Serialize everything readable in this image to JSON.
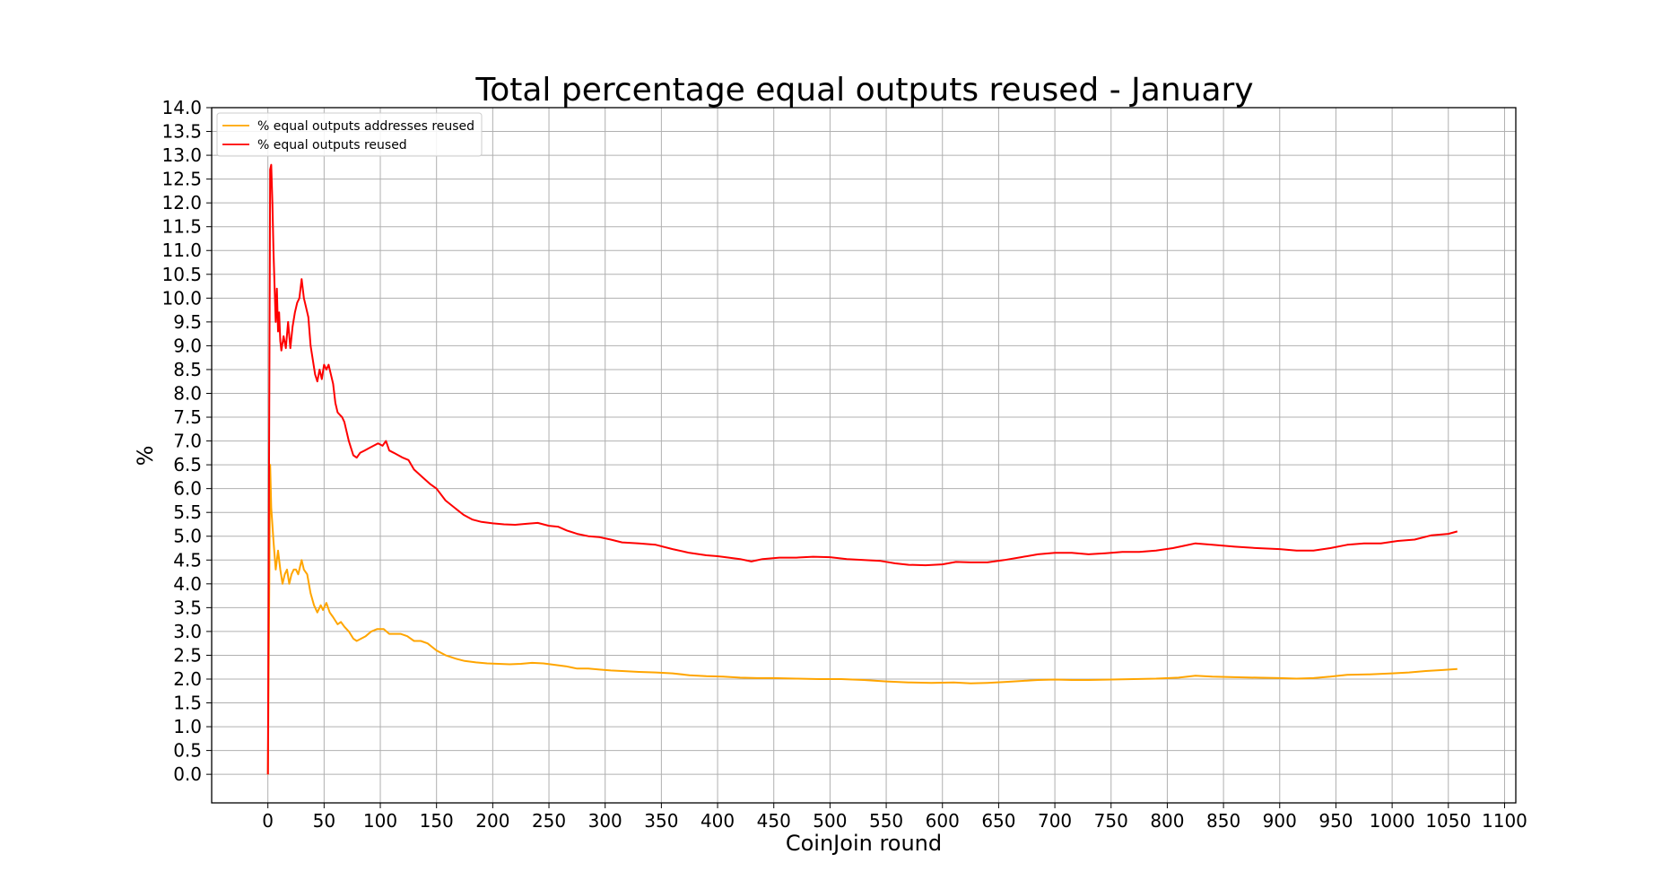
{
  "chart_data": {
    "type": "line",
    "title": "Total percentage equal outputs reused - January",
    "xlabel": "CoinJoin round",
    "ylabel": "%",
    "xlim": [
      -50,
      1110
    ],
    "ylim": [
      -0.6,
      14.0
    ],
    "x_ticks": [
      0,
      50,
      100,
      150,
      200,
      250,
      300,
      350,
      400,
      450,
      500,
      550,
      600,
      650,
      700,
      750,
      800,
      850,
      900,
      950,
      1000,
      1050,
      1100
    ],
    "y_ticks": [
      0.0,
      0.5,
      1.0,
      1.5,
      2.0,
      2.5,
      3.0,
      3.5,
      4.0,
      4.5,
      5.0,
      5.5,
      6.0,
      6.5,
      7.0,
      7.5,
      8.0,
      8.5,
      9.0,
      9.5,
      10.0,
      10.5,
      11.0,
      11.5,
      12.0,
      12.5,
      13.0,
      13.5,
      14.0
    ],
    "grid": true,
    "legend_position": "top-left",
    "series": [
      {
        "name": "% equal outputs addresses reused",
        "color": "#FFA500",
        "points": [
          [
            0,
            0.0
          ],
          [
            2,
            6.5
          ],
          [
            3,
            5.6
          ],
          [
            5,
            4.9
          ],
          [
            7,
            4.3
          ],
          [
            9,
            4.7
          ],
          [
            11,
            4.3
          ],
          [
            13,
            4.0
          ],
          [
            15,
            4.2
          ],
          [
            17,
            4.3
          ],
          [
            19,
            4.0
          ],
          [
            21,
            4.2
          ],
          [
            23,
            4.3
          ],
          [
            25,
            4.3
          ],
          [
            27,
            4.2
          ],
          [
            30,
            4.5
          ],
          [
            32,
            4.3
          ],
          [
            35,
            4.2
          ],
          [
            38,
            3.8
          ],
          [
            41,
            3.55
          ],
          [
            44,
            3.4
          ],
          [
            47,
            3.55
          ],
          [
            49,
            3.45
          ],
          [
            52,
            3.6
          ],
          [
            55,
            3.4
          ],
          [
            58,
            3.3
          ],
          [
            62,
            3.15
          ],
          [
            65,
            3.2
          ],
          [
            68,
            3.1
          ],
          [
            72,
            3.0
          ],
          [
            76,
            2.85
          ],
          [
            79,
            2.8
          ],
          [
            83,
            2.85
          ],
          [
            87,
            2.9
          ],
          [
            92,
            3.0
          ],
          [
            97,
            3.05
          ],
          [
            103,
            3.05
          ],
          [
            108,
            2.95
          ],
          [
            113,
            2.95
          ],
          [
            118,
            2.95
          ],
          [
            124,
            2.9
          ],
          [
            130,
            2.8
          ],
          [
            136,
            2.8
          ],
          [
            142,
            2.75
          ],
          [
            150,
            2.6
          ],
          [
            158,
            2.5
          ],
          [
            167,
            2.43
          ],
          [
            175,
            2.38
          ],
          [
            185,
            2.35
          ],
          [
            195,
            2.33
          ],
          [
            205,
            2.32
          ],
          [
            215,
            2.31
          ],
          [
            225,
            2.32
          ],
          [
            235,
            2.34
          ],
          [
            245,
            2.33
          ],
          [
            255,
            2.3
          ],
          [
            265,
            2.27
          ],
          [
            275,
            2.22
          ],
          [
            285,
            2.22
          ],
          [
            295,
            2.2
          ],
          [
            305,
            2.18
          ],
          [
            315,
            2.17
          ],
          [
            330,
            2.15
          ],
          [
            345,
            2.14
          ],
          [
            360,
            2.12
          ],
          [
            375,
            2.08
          ],
          [
            390,
            2.06
          ],
          [
            405,
            2.05
          ],
          [
            420,
            2.03
          ],
          [
            435,
            2.02
          ],
          [
            450,
            2.02
          ],
          [
            470,
            2.01
          ],
          [
            490,
            2.0
          ],
          [
            510,
            2.0
          ],
          [
            530,
            1.98
          ],
          [
            550,
            1.95
          ],
          [
            570,
            1.93
          ],
          [
            590,
            1.92
          ],
          [
            610,
            1.93
          ],
          [
            625,
            1.91
          ],
          [
            640,
            1.92
          ],
          [
            655,
            1.94
          ],
          [
            670,
            1.96
          ],
          [
            685,
            1.98
          ],
          [
            700,
            1.99
          ],
          [
            715,
            1.98
          ],
          [
            730,
            1.98
          ],
          [
            750,
            1.99
          ],
          [
            770,
            2.0
          ],
          [
            790,
            2.01
          ],
          [
            810,
            2.03
          ],
          [
            825,
            2.07
          ],
          [
            840,
            2.05
          ],
          [
            860,
            2.04
          ],
          [
            880,
            2.03
          ],
          [
            900,
            2.02
          ],
          [
            915,
            2.01
          ],
          [
            930,
            2.02
          ],
          [
            945,
            2.05
          ],
          [
            960,
            2.09
          ],
          [
            980,
            2.1
          ],
          [
            1000,
            2.12
          ],
          [
            1015,
            2.14
          ],
          [
            1030,
            2.17
          ],
          [
            1045,
            2.19
          ],
          [
            1058,
            2.21
          ]
        ]
      },
      {
        "name": "% equal outputs reused",
        "color": "#FF0000",
        "points": [
          [
            0,
            0.0
          ],
          [
            2,
            12.7
          ],
          [
            3,
            12.8
          ],
          [
            4,
            12.0
          ],
          [
            5,
            11.0
          ],
          [
            6,
            10.2
          ],
          [
            7,
            9.5
          ],
          [
            8,
            10.2
          ],
          [
            9,
            9.3
          ],
          [
            10,
            9.7
          ],
          [
            11,
            9.1
          ],
          [
            12,
            8.9
          ],
          [
            14,
            9.2
          ],
          [
            16,
            8.95
          ],
          [
            18,
            9.5
          ],
          [
            20,
            8.95
          ],
          [
            22,
            9.4
          ],
          [
            24,
            9.7
          ],
          [
            26,
            9.9
          ],
          [
            28,
            10.0
          ],
          [
            30,
            10.4
          ],
          [
            32,
            10.0
          ],
          [
            34,
            9.8
          ],
          [
            36,
            9.6
          ],
          [
            38,
            9.0
          ],
          [
            40,
            8.7
          ],
          [
            42,
            8.4
          ],
          [
            44,
            8.25
          ],
          [
            46,
            8.5
          ],
          [
            48,
            8.3
          ],
          [
            50,
            8.6
          ],
          [
            52,
            8.5
          ],
          [
            54,
            8.6
          ],
          [
            56,
            8.4
          ],
          [
            58,
            8.2
          ],
          [
            60,
            7.8
          ],
          [
            62,
            7.6
          ],
          [
            64,
            7.55
          ],
          [
            66,
            7.5
          ],
          [
            68,
            7.4
          ],
          [
            72,
            7.0
          ],
          [
            76,
            6.7
          ],
          [
            79,
            6.65
          ],
          [
            82,
            6.75
          ],
          [
            86,
            6.8
          ],
          [
            90,
            6.85
          ],
          [
            94,
            6.9
          ],
          [
            98,
            6.95
          ],
          [
            102,
            6.9
          ],
          [
            105,
            7.0
          ],
          [
            108,
            6.8
          ],
          [
            112,
            6.75
          ],
          [
            116,
            6.7
          ],
          [
            120,
            6.65
          ],
          [
            125,
            6.6
          ],
          [
            130,
            6.4
          ],
          [
            137,
            6.25
          ],
          [
            144,
            6.1
          ],
          [
            150,
            6.0
          ],
          [
            158,
            5.75
          ],
          [
            166,
            5.6
          ],
          [
            174,
            5.45
          ],
          [
            182,
            5.35
          ],
          [
            190,
            5.3
          ],
          [
            200,
            5.27
          ],
          [
            210,
            5.25
          ],
          [
            220,
            5.24
          ],
          [
            230,
            5.26
          ],
          [
            240,
            5.28
          ],
          [
            250,
            5.22
          ],
          [
            258,
            5.2
          ],
          [
            266,
            5.12
          ],
          [
            275,
            5.05
          ],
          [
            285,
            5.0
          ],
          [
            295,
            4.98
          ],
          [
            305,
            4.93
          ],
          [
            315,
            4.87
          ],
          [
            330,
            4.85
          ],
          [
            345,
            4.82
          ],
          [
            360,
            4.73
          ],
          [
            375,
            4.65
          ],
          [
            390,
            4.6
          ],
          [
            400,
            4.58
          ],
          [
            410,
            4.55
          ],
          [
            420,
            4.52
          ],
          [
            430,
            4.47
          ],
          [
            440,
            4.52
          ],
          [
            455,
            4.55
          ],
          [
            470,
            4.55
          ],
          [
            485,
            4.57
          ],
          [
            500,
            4.56
          ],
          [
            515,
            4.52
          ],
          [
            530,
            4.5
          ],
          [
            545,
            4.48
          ],
          [
            558,
            4.43
          ],
          [
            570,
            4.4
          ],
          [
            585,
            4.39
          ],
          [
            600,
            4.41
          ],
          [
            612,
            4.46
          ],
          [
            625,
            4.45
          ],
          [
            640,
            4.45
          ],
          [
            655,
            4.5
          ],
          [
            670,
            4.56
          ],
          [
            685,
            4.62
          ],
          [
            700,
            4.65
          ],
          [
            715,
            4.65
          ],
          [
            730,
            4.62
          ],
          [
            745,
            4.64
          ],
          [
            760,
            4.67
          ],
          [
            775,
            4.67
          ],
          [
            790,
            4.7
          ],
          [
            805,
            4.75
          ],
          [
            815,
            4.8
          ],
          [
            825,
            4.85
          ],
          [
            840,
            4.82
          ],
          [
            860,
            4.78
          ],
          [
            880,
            4.75
          ],
          [
            900,
            4.73
          ],
          [
            915,
            4.7
          ],
          [
            930,
            4.7
          ],
          [
            945,
            4.75
          ],
          [
            960,
            4.82
          ],
          [
            975,
            4.85
          ],
          [
            990,
            4.85
          ],
          [
            1005,
            4.9
          ],
          [
            1020,
            4.93
          ],
          [
            1035,
            5.02
          ],
          [
            1050,
            5.05
          ],
          [
            1058,
            5.1
          ]
        ]
      }
    ]
  }
}
